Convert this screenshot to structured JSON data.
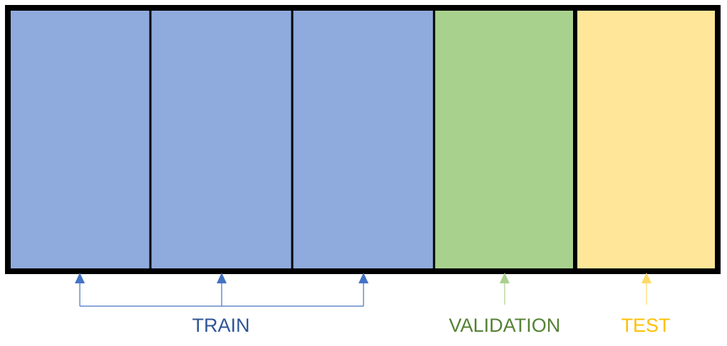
{
  "colors": {
    "train_fill": "#8faadc",
    "validation_fill": "#a9d18e",
    "test_fill": "#ffe699",
    "border": "#000000",
    "train_text": "#2f5597",
    "train_arrow": "#4472c4",
    "validation_text": "#548235",
    "validation_arrow": "#a9d18e",
    "test_text": "#ffc000",
    "test_arrow": "#ffd966"
  },
  "segments": [
    {
      "split": "train"
    },
    {
      "split": "train"
    },
    {
      "split": "train"
    },
    {
      "split": "validation"
    },
    {
      "split": "test"
    }
  ],
  "labels": {
    "train": "TRAIN",
    "validation": "VALIDATION",
    "test": "TEST"
  }
}
